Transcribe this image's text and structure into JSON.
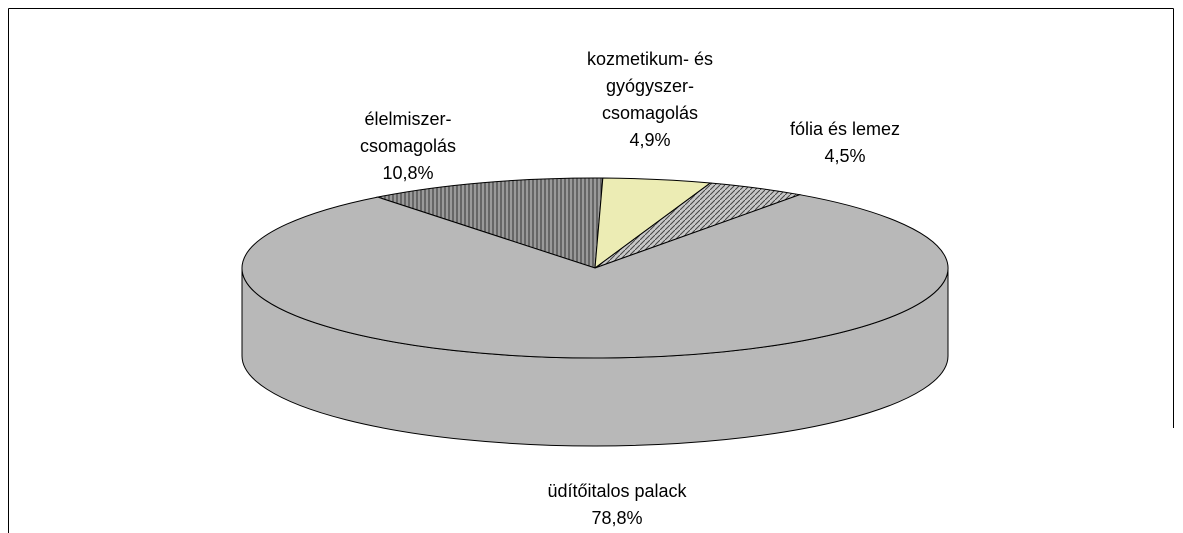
{
  "chart_data": {
    "type": "pie",
    "categories": [
      "élelmiszer-csomagolás",
      "kozmetikum- és gyógyszer-csomagolás",
      "fólia és lemez",
      "üdítőitalos palack"
    ],
    "values": [
      10.8,
      4.9,
      4.5,
      78.8
    ],
    "value_labels": [
      "10,8%",
      "4,9%",
      "4,5%",
      "78,8%"
    ],
    "colors": [
      "#8a8a8a",
      "#ececb4",
      "#9c9c9c",
      "#b8b8b8"
    ]
  }
}
